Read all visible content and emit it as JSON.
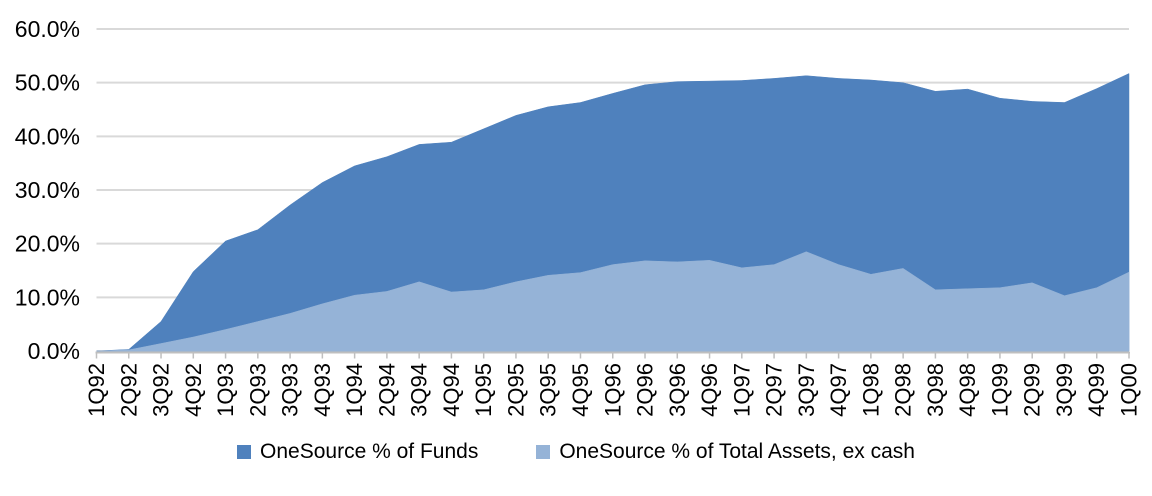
{
  "chart_data": {
    "type": "area",
    "stacking": "overlapping",
    "title": "",
    "xlabel": "",
    "ylabel": "",
    "grid": "horizontal",
    "legend_position": "bottom",
    "categories": [
      "1Q92",
      "2Q92",
      "3Q92",
      "4Q92",
      "1Q93",
      "2Q93",
      "3Q93",
      "4Q93",
      "1Q94",
      "2Q94",
      "3Q94",
      "4Q94",
      "1Q95",
      "2Q95",
      "3Q95",
      "4Q95",
      "1Q96",
      "2Q96",
      "3Q96",
      "4Q96",
      "1Q97",
      "2Q97",
      "3Q97",
      "4Q97",
      "1Q98",
      "2Q98",
      "3Q98",
      "4Q98",
      "1Q99",
      "2Q99",
      "3Q99",
      "4Q99",
      "1Q00"
    ],
    "series": [
      {
        "name": "OneSource % of Funds",
        "color": "#4F81BD",
        "values": [
          0,
          0.3,
          5.5,
          14.8,
          20.5,
          22.6,
          27.2,
          31.4,
          34.5,
          36.2,
          38.5,
          38.9,
          41.4,
          43.9,
          45.5,
          46.3,
          48.0,
          49.6,
          50.2,
          50.3,
          50.4,
          50.8,
          51.3,
          50.8,
          50.5,
          50.0,
          48.4,
          48.8,
          47.1,
          46.5,
          46.3,
          48.9,
          51.7
        ]
      },
      {
        "name": "OneSource % of Total Assets, ex cash",
        "color": "#95B3D7",
        "values": [
          0,
          0.2,
          1.4,
          2.6,
          4.0,
          5.5,
          7.0,
          8.8,
          10.4,
          11.1,
          12.9,
          11.0,
          11.4,
          12.9,
          14.1,
          14.6,
          16.1,
          16.8,
          16.6,
          16.9,
          15.5,
          16.1,
          18.5,
          16.1,
          14.3,
          15.4,
          11.4,
          11.6,
          11.8,
          12.7,
          10.3,
          11.8,
          14.7
        ]
      }
    ],
    "y_axis": {
      "min": 0,
      "max": 60,
      "tick_step": 10,
      "tick_labels": [
        "0.0%",
        "10.0%",
        "20.0%",
        "30.0%",
        "40.0%",
        "50.0%",
        "60.0%"
      ]
    }
  },
  "colors": {
    "background": "#FFFFFF",
    "gridline": "#D9D9D9",
    "axis_line": "#BFBFBF",
    "text": "#000000"
  }
}
